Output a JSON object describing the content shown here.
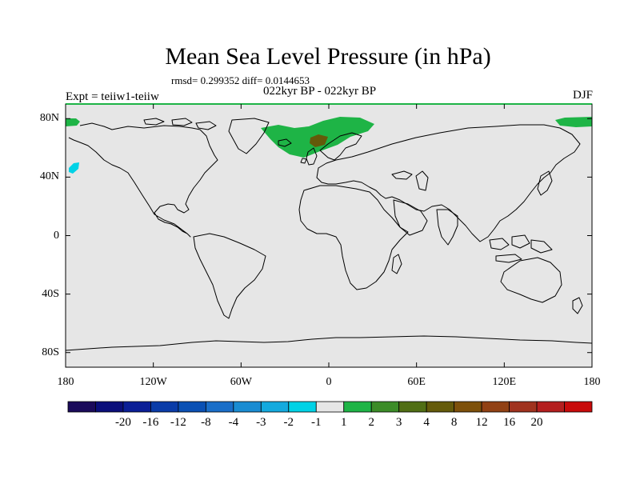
{
  "title": "Mean Sea Level Pressure (in hPa)",
  "stats_text": "rmsd= 0.299352 diff= 0.0144653",
  "subtitle": "022kyr BP - 022kyr BP",
  "left_label": "Expt = teiiw1-teiiw",
  "right_label": "DJF",
  "map": {
    "projection": "cylindrical-equidistant",
    "lon_range": [
      -180,
      180
    ],
    "lat_range": [
      -90,
      90
    ],
    "background_color": "#e6e6e6",
    "coastline_color": "#000000",
    "lat_ticks": [
      {
        "value": 80,
        "label": "80N"
      },
      {
        "value": 40,
        "label": "40N"
      },
      {
        "value": 0,
        "label": "0"
      },
      {
        "value": -40,
        "label": "40S"
      },
      {
        "value": -80,
        "label": "80S"
      }
    ],
    "lon_ticks": [
      {
        "value": -180,
        "label": "180"
      },
      {
        "value": -120,
        "label": "120W"
      },
      {
        "value": -60,
        "label": "60W"
      },
      {
        "value": 0,
        "label": "0"
      },
      {
        "value": 60,
        "label": "60E"
      },
      {
        "value": 120,
        "label": "120E"
      },
      {
        "value": 180,
        "label": "180"
      }
    ]
  },
  "colorbar": {
    "colors": [
      "#1a0a5a",
      "#0a0e7a",
      "#0a1e96",
      "#0a3ca8",
      "#0a50b4",
      "#1a6ec8",
      "#1a8cd2",
      "#14aade",
      "#00d2e6",
      "#e6e6e6",
      "#1eb446",
      "#3c8c28",
      "#506e14",
      "#645a0a",
      "#7d500a",
      "#914114",
      "#a0321e",
      "#b41e1e",
      "#c80a0a"
    ],
    "labels": [
      "-20",
      "-16",
      "-12",
      "-8",
      "-4",
      "-3",
      "-2",
      "-1",
      "1",
      "2",
      "3",
      "4",
      "8",
      "12",
      "16",
      "20"
    ]
  }
}
